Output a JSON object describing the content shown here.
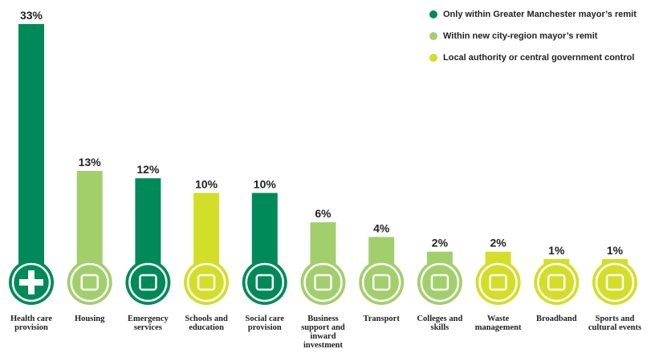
{
  "chart_data": {
    "type": "bar",
    "categories": [
      "Health care provision",
      "Housing",
      "Emergency services",
      "Schools and education",
      "Social care provision",
      "Business support and inward investment",
      "Transport",
      "Colleges and skills",
      "Waste management",
      "Broadband",
      "Sports and cultural events"
    ],
    "series": [
      {
        "name": "Only within Greater Manchester mayor’s remit",
        "color": "#008a5a",
        "values": [
          33,
          null,
          12,
          null,
          10,
          null,
          null,
          null,
          null,
          null,
          null
        ],
        "value_labels": [
          "33%",
          null,
          "12%",
          null,
          "10%",
          null,
          null,
          null,
          null,
          null,
          null
        ]
      },
      {
        "name": "Within new city-region mayor’s remit",
        "color": "#a2cf6c",
        "values": [
          null,
          13,
          null,
          null,
          null,
          6,
          4,
          2,
          null,
          null,
          null
        ],
        "value_labels": [
          null,
          "13%",
          null,
          null,
          null,
          "6%",
          "4%",
          "2%",
          null,
          null,
          null
        ]
      },
      {
        "name": "Local authority or central government control",
        "color": "#d3de28",
        "values": [
          null,
          null,
          null,
          10,
          null,
          null,
          null,
          null,
          2,
          1,
          1
        ],
        "value_labels": [
          null,
          null,
          null,
          "10%",
          null,
          null,
          null,
          null,
          "2%",
          "1%",
          "1%"
        ]
      }
    ]
  }
}
